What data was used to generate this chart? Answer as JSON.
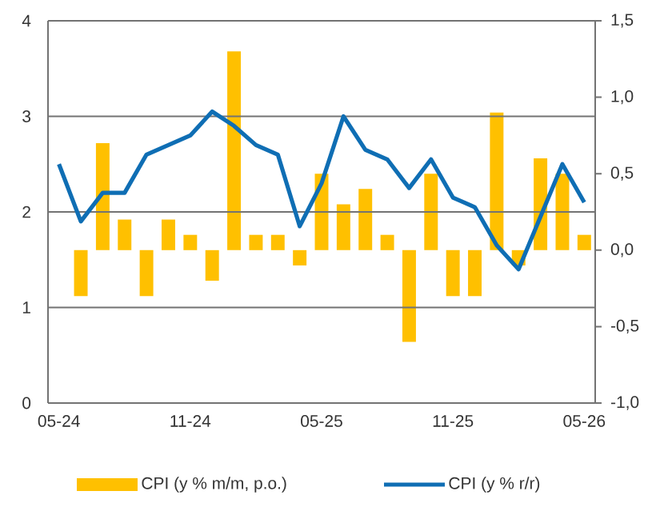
{
  "chart_data": {
    "type": "bar",
    "categories": [
      "05-24",
      null,
      null,
      null,
      null,
      null,
      "11-24",
      null,
      null,
      null,
      null,
      null,
      "05-25",
      null,
      null,
      null,
      null,
      null,
      "11-25",
      null,
      null,
      null,
      null,
      null,
      "05-26"
    ],
    "series": [
      {
        "name": "CPI (y % m/m, p.o.)",
        "axis": "y2",
        "color": "#ffc000",
        "values": [
          null,
          -0.3,
          0.7,
          0.2,
          -0.3,
          0.2,
          0.1,
          -0.2,
          1.3,
          0.1,
          0.1,
          -0.1,
          0.5,
          0.3,
          0.4,
          0.1,
          -0.6,
          0.5,
          -0.3,
          -0.3,
          0.9,
          -0.1,
          0.6,
          0.5,
          0.1
        ]
      },
      {
        "name": "CPI (y % r/r)",
        "type": "line",
        "axis": "y",
        "color": "#0f6eb4",
        "values": [
          2.5,
          1.9,
          2.2,
          2.2,
          2.6,
          2.7,
          2.8,
          3.05,
          2.9,
          2.7,
          2.6,
          1.85,
          2.3,
          3.0,
          2.65,
          2.55,
          2.25,
          2.55,
          2.15,
          2.05,
          1.65,
          1.4,
          1.95,
          2.5,
          2.1
        ]
      }
    ],
    "ylim": [
      0,
      4
    ],
    "yticks": [
      0,
      1,
      2,
      3,
      4
    ],
    "y2lim": [
      -1.0,
      1.5
    ],
    "y2ticks": [
      {
        "value": -1.0,
        "label": "-1,0"
      },
      {
        "value": -0.5,
        "label": "-0,5"
      },
      {
        "value": 0.0,
        "label": "0,0"
      },
      {
        "value": 0.5,
        "label": "0,5"
      },
      {
        "value": 1.0,
        "label": "1,0"
      },
      {
        "value": 1.5,
        "label": "1,5"
      }
    ],
    "grid": "y",
    "legend": "bottom"
  }
}
